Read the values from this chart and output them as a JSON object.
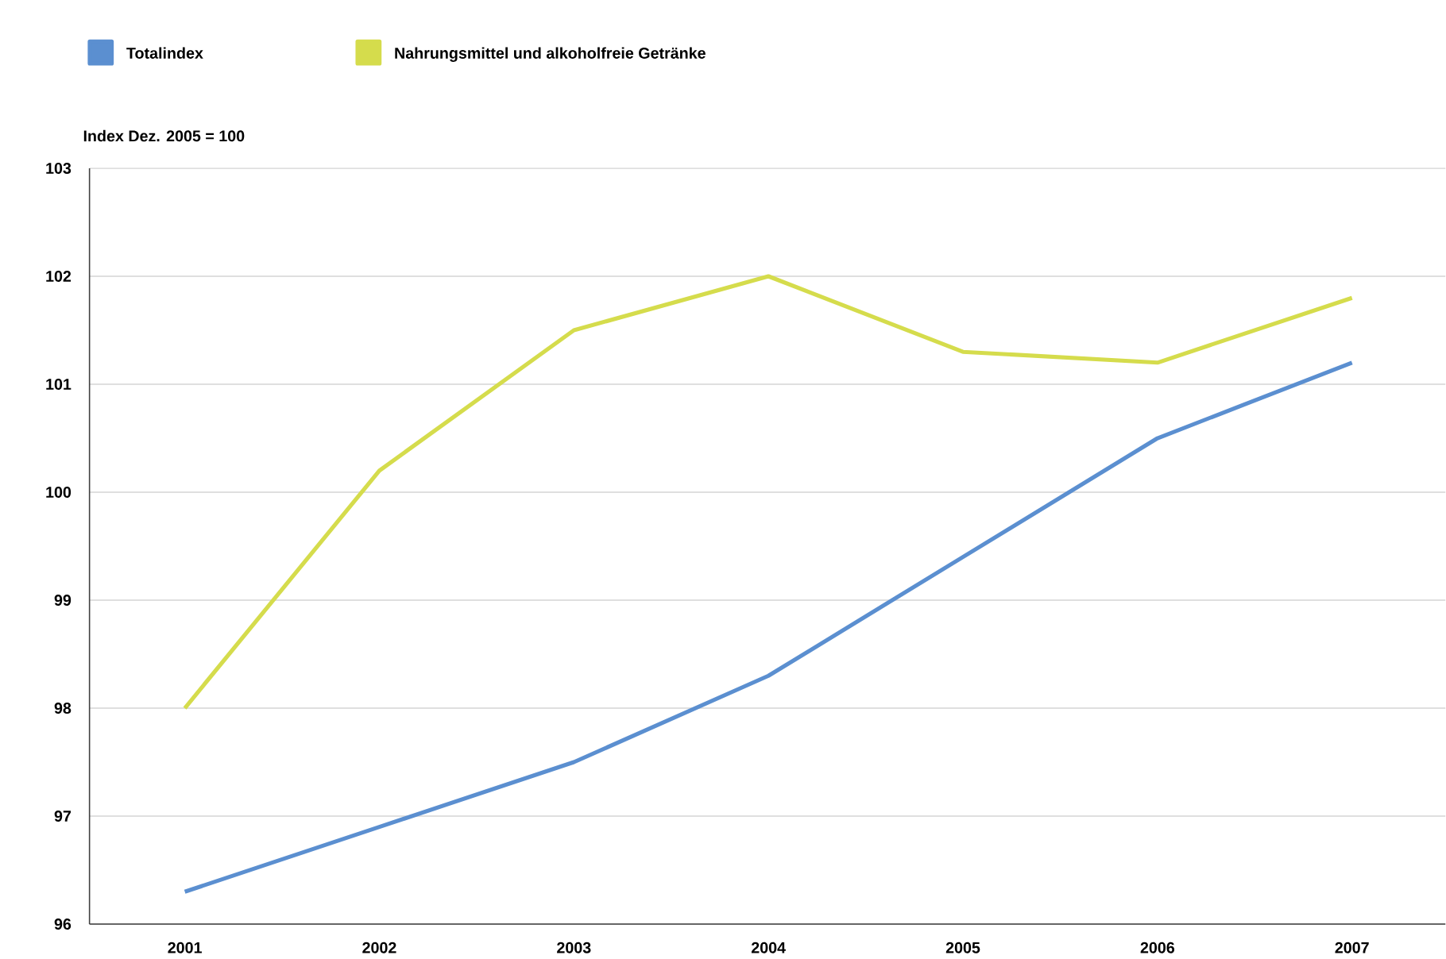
{
  "chart_data": {
    "type": "line",
    "ylabel": "Index Dez. 2005 = 100",
    "categories": [
      "2001",
      "2002",
      "2003",
      "2004",
      "2005",
      "2006",
      "2007"
    ],
    "series": [
      {
        "name": "Totalindex",
        "color": "#5b8fd0",
        "values": [
          96.3,
          96.9,
          97.5,
          98.3,
          99.4,
          100.5,
          101.2
        ]
      },
      {
        "name": "Nahrungsmittel und alkoholfreie Getränke",
        "color": "#d5dc4c",
        "values": [
          98.0,
          100.2,
          101.5,
          102.0,
          101.3,
          101.2,
          101.8
        ]
      }
    ],
    "ylim": [
      96,
      103
    ],
    "yticks": [
      96,
      97,
      98,
      99,
      100,
      101,
      102,
      103
    ],
    "grid": "y",
    "legend": "top left",
    "marker": "none",
    "line_style": "solid"
  }
}
